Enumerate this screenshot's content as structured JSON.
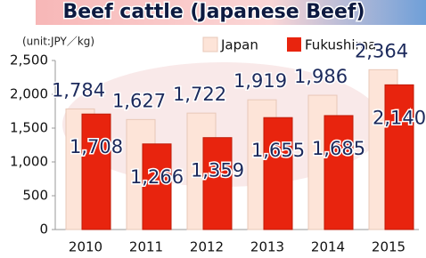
{
  "chart_data": {
    "type": "bar",
    "title": "Beef cattle (Japanese Beef)",
    "unit_label": "(unit:JPY／kg)",
    "categories": [
      "2010",
      "2011",
      "2012",
      "2013",
      "2014",
      "2015"
    ],
    "series": [
      {
        "name": "Japan",
        "color": "#fde4d8",
        "values": [
          1784,
          1627,
          1722,
          1919,
          1986,
          2364
        ],
        "value_labels": [
          "1,784",
          "1,627",
          "1,722",
          "1,919",
          "1,986",
          "2,364"
        ]
      },
      {
        "name": "Fukushima",
        "color": "#e8240e",
        "values": [
          1708,
          1266,
          1359,
          1655,
          1685,
          2140
        ],
        "value_labels": [
          "1,708",
          "1,266",
          "1,359",
          "1,655",
          "1,685",
          "2,140"
        ]
      }
    ],
    "ylim": [
      0,
      2500
    ],
    "yticks": [
      0,
      500,
      {
        "value": 1000,
        "label": "1,000"
      },
      {
        "value": 1500,
        "label": "1,500"
      },
      {
        "value": 2000,
        "label": "2,000"
      },
      {
        "value": 2500,
        "label": "2,500"
      }
    ],
    "legend": "top"
  }
}
